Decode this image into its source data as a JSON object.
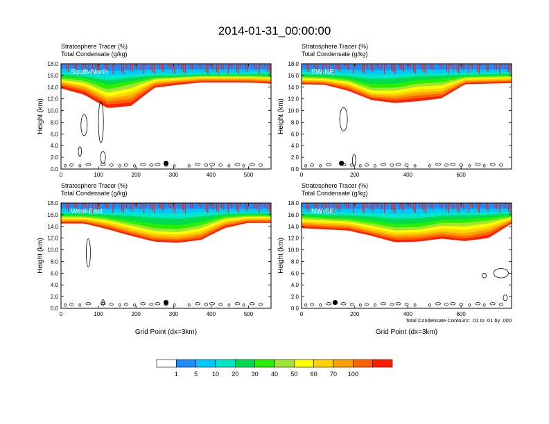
{
  "title": "2014-01-31_00:00:00",
  "panel_header": {
    "line1": "Stratosphere Tracer   (%)",
    "line2": "Total Condensate   (g/kg)"
  },
  "ylabel": "Height (km)",
  "xlabel": "Grid Point (dx=3km)",
  "contour_note": "Total Condensate Contours: .01 to .01 by .000",
  "colorbar": {
    "labels": [
      "1",
      "5",
      "10",
      "20",
      "30",
      "40",
      "50",
      "60",
      "70",
      "100"
    ],
    "colors": [
      "#ffffff",
      "#1e8cff",
      "#00c8ff",
      "#00e6c8",
      "#00dc50",
      "#28f000",
      "#a0e632",
      "#ffff00",
      "#ffd200",
      "#ffa000",
      "#ff6400",
      "#ff1e00"
    ]
  },
  "chart_data": [
    {
      "type": "heatmap",
      "name": "South-North",
      "xlim": [
        0,
        560
      ],
      "ylim": [
        0,
        18
      ],
      "xticks": [
        0,
        100,
        200,
        300,
        400,
        500
      ],
      "yticks": [
        0,
        2,
        4,
        6,
        8,
        10,
        12,
        14,
        16,
        18
      ]
    },
    {
      "type": "heatmap",
      "name": "SW-NE",
      "xlim": [
        0,
        790
      ],
      "ylim": [
        0,
        18
      ],
      "xticks": [
        0,
        200,
        400,
        600
      ],
      "yticks": [
        0,
        2,
        4,
        6,
        8,
        10,
        12,
        14,
        16,
        18
      ]
    },
    {
      "type": "heatmap",
      "name": "West-East",
      "xlim": [
        0,
        560
      ],
      "ylim": [
        0,
        18
      ],
      "xticks": [
        0,
        100,
        200,
        300,
        400,
        500
      ],
      "yticks": [
        0,
        2,
        4,
        6,
        8,
        10,
        12,
        14,
        16,
        18
      ]
    },
    {
      "type": "heatmap",
      "name": "NW-SE",
      "xlim": [
        0,
        790
      ],
      "ylim": [
        0,
        18
      ],
      "xticks": [
        0,
        200,
        400,
        600
      ],
      "yticks": [
        0,
        2,
        4,
        6,
        8,
        10,
        12,
        14,
        16,
        18
      ]
    }
  ]
}
